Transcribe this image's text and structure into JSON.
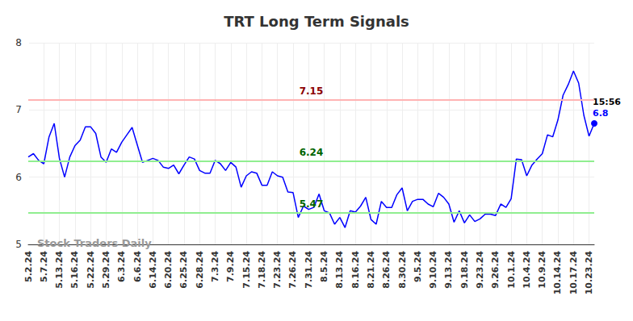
{
  "chart_data": {
    "type": "line",
    "title": "TRT Long Term Signals",
    "categories": [
      "5.2.24",
      null,
      null,
      "5.7.24",
      null,
      null,
      "5.13.24",
      null,
      null,
      "5.16.24",
      null,
      null,
      "5.22.24",
      null,
      null,
      "5.29.24",
      null,
      null,
      "6.3.24",
      null,
      null,
      "6.6.24",
      null,
      null,
      "6.14.24",
      null,
      null,
      "6.20.24",
      null,
      null,
      "6.25.24",
      null,
      null,
      "6.28.24",
      null,
      null,
      "7.3.24",
      null,
      null,
      "7.9.24",
      null,
      null,
      "7.15.24",
      null,
      null,
      "7.18.24",
      null,
      null,
      "7.23.24",
      null,
      null,
      "7.26.24",
      null,
      null,
      "7.31.24",
      null,
      null,
      "8.5.24",
      null,
      null,
      "8.13.24",
      null,
      null,
      "8.16.24",
      null,
      null,
      "8.21.24",
      null,
      null,
      "8.26.24",
      null,
      null,
      "8.30.24",
      null,
      null,
      "9.5.24",
      null,
      null,
      "9.10.24",
      null,
      null,
      "9.13.24",
      null,
      null,
      "9.18.24",
      null,
      null,
      "9.23.24",
      null,
      null,
      "9.26.24",
      null,
      null,
      "10.1.24",
      null,
      null,
      "10.4.24",
      null,
      null,
      "10.9.24",
      null,
      null,
      "10.14.24",
      null,
      null,
      "10.17.24",
      null,
      null,
      "10.23.24",
      null
    ],
    "values": [
      6.3,
      6.35,
      6.25,
      6.2,
      6.6,
      6.8,
      6.28,
      6.0,
      6.3,
      6.47,
      6.55,
      6.75,
      6.75,
      6.65,
      6.3,
      6.22,
      6.42,
      6.37,
      6.52,
      6.63,
      6.74,
      6.48,
      6.22,
      6.25,
      6.28,
      6.25,
      6.15,
      6.13,
      6.18,
      6.05,
      6.18,
      6.3,
      6.27,
      6.1,
      6.06,
      6.06,
      6.25,
      6.2,
      6.1,
      6.22,
      6.15,
      5.85,
      6.02,
      6.08,
      6.06,
      5.88,
      5.88,
      6.08,
      6.02,
      6.0,
      5.78,
      5.77,
      5.4,
      5.57,
      5.52,
      5.55,
      5.75,
      5.5,
      5.47,
      5.3,
      5.4,
      5.25,
      5.5,
      5.48,
      5.57,
      5.7,
      5.37,
      5.3,
      5.64,
      5.55,
      5.55,
      5.74,
      5.84,
      5.5,
      5.64,
      5.67,
      5.67,
      5.6,
      5.56,
      5.76,
      5.7,
      5.6,
      5.33,
      5.5,
      5.32,
      5.44,
      5.34,
      5.38,
      5.45,
      5.45,
      5.43,
      5.6,
      5.55,
      5.68,
      6.27,
      6.26,
      6.02,
      6.18,
      6.27,
      6.35,
      6.63,
      6.6,
      6.85,
      7.22,
      7.38,
      7.58,
      7.4,
      6.92,
      6.61,
      6.8
    ],
    "color": "#0000ff",
    "ylim": [
      5,
      8
    ],
    "yticks": [
      5,
      6,
      7,
      8
    ],
    "grid": true,
    "hlines": [
      {
        "value": 7.15,
        "label": "7.15",
        "color": "#ffb3b3"
      },
      {
        "value": 6.24,
        "label": "6.24",
        "color": "#90ee90"
      },
      {
        "value": 5.47,
        "label": "5.47",
        "color": "#90ee90"
      }
    ],
    "last_point_time": "15:56",
    "watermark": "Stock Traders Daily"
  }
}
